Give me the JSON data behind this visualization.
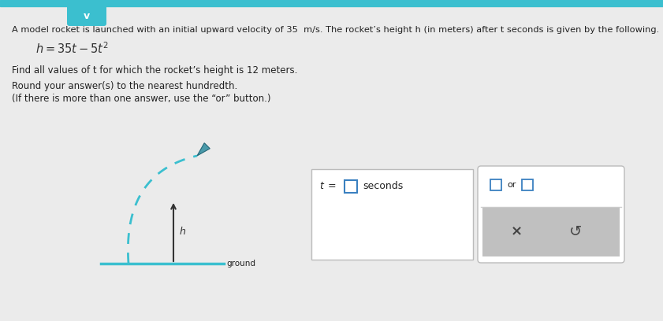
{
  "bg_color": "#ebebeb",
  "top_bar_color": "#3bbfcf",
  "chevron_color": "#3bbfcf",
  "text_color": "#222222",
  "formula_color": "#333333",
  "ground_color": "#3bbfcf",
  "arrow_color": "#333333",
  "rocket_path_color": "#3bbfcf",
  "rocket_color": "#4a9aaa",
  "box_bg": "#ffffff",
  "box_border_gray": "#bbbbbb",
  "input_border_blue": "#3a80c0",
  "panel_gray": "#c0c0c0",
  "dark_text": "#444444",
  "line1": "A model rocket is launched with an initial upward velocity of 35  m/s. The rocket’s height h (in meters) after t seconds is given by the following.",
  "find_text": "Find all values of t for which the rocket’s height is 12 meters.",
  "round_text1": "Round your answer(s) to the nearest hundredth.",
  "round_text2": "(If there is more than one answer, use the “or” button.)",
  "ground_label": "ground",
  "h_label": "h",
  "answer_unit": "seconds",
  "x_label": "×",
  "undo_label": "↺",
  "or_text": "or"
}
